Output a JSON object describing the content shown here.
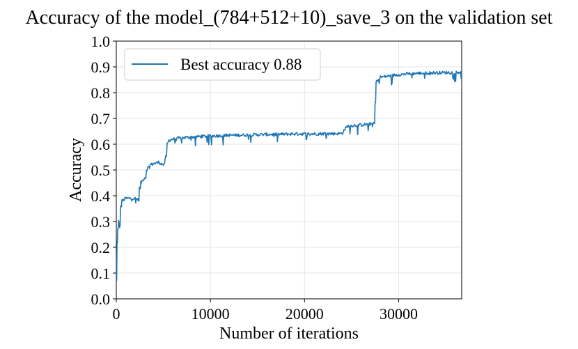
{
  "chart_data": {
    "type": "line",
    "title": "Accuracy of the model_(784+512+10)_save_3 on the validation set",
    "xlabel": "Number of iterations",
    "ylabel": "Accuracy",
    "xlim": [
      0,
      36700
    ],
    "ylim": [
      0.0,
      1.0
    ],
    "grid": true,
    "legend_position": "top-left",
    "xticks": [
      0,
      10000,
      20000,
      30000
    ],
    "xtick_labels": [
      "0",
      "10000",
      "20000",
      "30000"
    ],
    "yticks": [
      0.0,
      0.1,
      0.2,
      0.3,
      0.4,
      0.5,
      0.6,
      0.7,
      0.8,
      0.9,
      1.0
    ],
    "ytick_labels": [
      "0.0",
      "0.1",
      "0.2",
      "0.3",
      "0.4",
      "0.5",
      "0.6",
      "0.7",
      "0.8",
      "0.9",
      "1.0"
    ],
    "series": [
      {
        "name": "Best accuracy 0.88",
        "color": "#1f77b4",
        "x": [
          0,
          80,
          150,
          250,
          350,
          450,
          600,
          800,
          1000,
          1500,
          2000,
          2350,
          2450,
          2600,
          2800,
          3000,
          3200,
          3400,
          3600,
          4000,
          4500,
          5000,
          5200,
          5400,
          5600,
          6000,
          7000,
          8000,
          9000,
          10000,
          11000,
          12000,
          13000,
          14000,
          15000,
          16000,
          17000,
          18000,
          19000,
          20000,
          21000,
          22000,
          23000,
          24000,
          24300,
          24600,
          25000,
          26000,
          27000,
          27400,
          27500,
          27600,
          27800,
          28000,
          29000,
          30000,
          31000,
          32000,
          33000,
          34000,
          35000,
          36000,
          36700
        ],
        "values": [
          0.07,
          0.22,
          0.27,
          0.3,
          0.28,
          0.36,
          0.38,
          0.385,
          0.39,
          0.39,
          0.39,
          0.385,
          0.43,
          0.45,
          0.46,
          0.47,
          0.5,
          0.51,
          0.52,
          0.525,
          0.53,
          0.52,
          0.55,
          0.6,
          0.615,
          0.62,
          0.625,
          0.628,
          0.63,
          0.632,
          0.633,
          0.635,
          0.635,
          0.636,
          0.637,
          0.638,
          0.638,
          0.639,
          0.64,
          0.64,
          0.64,
          0.641,
          0.641,
          0.642,
          0.66,
          0.67,
          0.672,
          0.675,
          0.678,
          0.68,
          0.76,
          0.84,
          0.85,
          0.86,
          0.865,
          0.87,
          0.873,
          0.875,
          0.876,
          0.877,
          0.878,
          0.879,
          0.88
        ]
      }
    ]
  }
}
